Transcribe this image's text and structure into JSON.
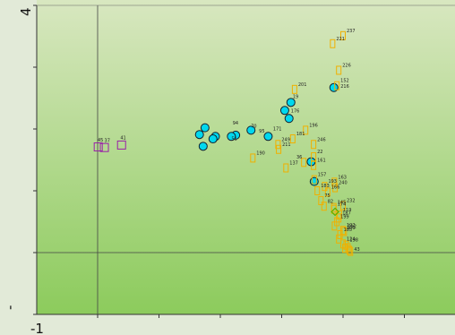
{
  "chart_data": {
    "type": "scatter",
    "title": "",
    "xlabel": "",
    "ylabel": "",
    "x_tick_labels": [
      "-1"
    ],
    "y_tick_labels": [
      "4",
      "-"
    ],
    "xlim": [
      -1,
      4.5
    ],
    "ylim": [
      -1,
      4
    ],
    "reference_lines": {
      "x": 0,
      "y": 0
    },
    "grid": false,
    "colors": {
      "background_top": "#d8e7c0",
      "background_bottom": "#8ccb5c",
      "cyan": "#00d8ee",
      "orange": "#f0b000",
      "purple": "#9a20a8",
      "green": "#58b000"
    },
    "series": [
      {
        "marker": "circle",
        "color": "#00d8ee",
        "points": [
          {
            "label": "",
            "x": 3.85,
            "y": 2.67
          },
          {
            "label": "",
            "x": 3.15,
            "y": 2.43
          },
          {
            "label": "",
            "x": 3.05,
            "y": 2.3
          },
          {
            "label": "",
            "x": 3.12,
            "y": 2.17
          },
          {
            "label": "",
            "x": 2.78,
            "y": 1.88
          },
          {
            "label": "",
            "x": 2.5,
            "y": 1.98
          },
          {
            "label": "",
            "x": 2.25,
            "y": 1.9
          },
          {
            "label": "",
            "x": 2.18,
            "y": 1.88
          },
          {
            "label": "",
            "x": 1.92,
            "y": 1.88
          },
          {
            "label": "",
            "x": 1.75,
            "y": 2.02
          },
          {
            "label": "",
            "x": 1.66,
            "y": 1.91
          },
          {
            "label": "",
            "x": 1.72,
            "y": 1.72
          },
          {
            "label": "",
            "x": 1.88,
            "y": 1.84
          },
          {
            "label": "",
            "x": 3.48,
            "y": 1.47
          },
          {
            "label": "",
            "x": 3.53,
            "y": 1.15
          }
        ]
      },
      {
        "marker": "square",
        "color": "#f0b000",
        "points": [
          {
            "label": "237",
            "x": 4.0,
            "y": 3.51
          },
          {
            "label": "221",
            "x": 3.83,
            "y": 3.38
          },
          {
            "label": "226",
            "x": 3.93,
            "y": 2.95
          },
          {
            "label": "152",
            "x": 3.9,
            "y": 2.7
          },
          {
            "label": "201",
            "x": 3.21,
            "y": 2.64
          },
          {
            "label": "196",
            "x": 3.39,
            "y": 1.98
          },
          {
            "label": "181",
            "x": 3.18,
            "y": 1.84
          },
          {
            "label": "246",
            "x": 3.52,
            "y": 1.75
          },
          {
            "label": "249",
            "x": 2.94,
            "y": 1.75
          },
          {
            "label": "211",
            "x": 2.95,
            "y": 1.67
          },
          {
            "label": "190",
            "x": 2.53,
            "y": 1.53
          },
          {
            "label": "22",
            "x": 3.52,
            "y": 1.55
          },
          {
            "label": "",
            "x": 3.36,
            "y": 1.46
          },
          {
            "label": "137",
            "x": 3.07,
            "y": 1.37
          },
          {
            "label": "161",
            "x": 3.52,
            "y": 1.41
          },
          {
            "label": "157",
            "x": 3.53,
            "y": 1.18
          },
          {
            "label": "193",
            "x": 3.7,
            "y": 1.07
          },
          {
            "label": "163",
            "x": 3.86,
            "y": 1.14
          },
          {
            "label": "240",
            "x": 3.87,
            "y": 1.05
          },
          {
            "label": "183",
            "x": 3.58,
            "y": 1.0
          },
          {
            "label": "166",
            "x": 3.75,
            "y": 0.98
          },
          {
            "label": "75",
            "x": 3.64,
            "y": 0.84
          },
          {
            "label": "82",
            "x": 3.69,
            "y": 0.75
          },
          {
            "label": "232",
            "x": 4.0,
            "y": 0.76
          },
          {
            "label": "145",
            "x": 3.85,
            "y": 0.73
          },
          {
            "label": "174",
            "x": 3.85,
            "y": 0.7
          },
          {
            "label": "119",
            "x": 3.94,
            "y": 0.61
          },
          {
            "label": "187",
            "x": 3.93,
            "y": 0.56
          },
          {
            "label": "199",
            "x": 3.9,
            "y": 0.5
          },
          {
            "label": "",
            "x": 3.86,
            "y": 0.43
          },
          {
            "label": "192",
            "x": 4.0,
            "y": 0.36
          },
          {
            "label": "112",
            "x": 4.02,
            "y": 0.34
          },
          {
            "label": "185",
            "x": 3.95,
            "y": 0.29
          },
          {
            "label": "",
            "x": 3.93,
            "y": 0.22
          },
          {
            "label": "124",
            "x": 4.0,
            "y": 0.14
          },
          {
            "label": "198",
            "x": 4.05,
            "y": 0.12
          },
          {
            "label": "",
            "x": 4.08,
            "y": 0.08
          },
          {
            "label": "",
            "x": 4.1,
            "y": 0.04
          },
          {
            "label": "",
            "x": 4.03,
            "y": 0.07
          },
          {
            "label": "",
            "x": 4.12,
            "y": 0.02
          }
        ]
      },
      {
        "marker": "square",
        "color": "#9a20a8",
        "points": [
          {
            "label": "",
            "x": 0.01,
            "y": 1.71
          },
          {
            "label": "",
            "x": 0.11,
            "y": 1.7
          },
          {
            "label": "",
            "x": 0.39,
            "y": 1.74
          }
        ]
      },
      {
        "marker": "diamond",
        "color": "#58b000",
        "points": [
          {
            "label": "",
            "x": 3.87,
            "y": 0.66
          }
        ]
      }
    ],
    "point_labels": [
      {
        "text": "94",
        "x": 2.2,
        "y": 2.07
      },
      {
        "text": "70",
        "x": 2.5,
        "y": 2.02
      },
      {
        "text": "19",
        "x": 3.18,
        "y": 2.5
      },
      {
        "text": "176",
        "x": 3.15,
        "y": 2.27
      },
      {
        "text": "171",
        "x": 2.86,
        "y": 1.98
      },
      {
        "text": "95",
        "x": 2.63,
        "y": 1.94
      },
      {
        "text": "51",
        "x": 2.18,
        "y": 1.82
      },
      {
        "text": "216",
        "x": 3.96,
        "y": 2.67
      },
      {
        "text": "45",
        "x": 0.0,
        "y": 1.8
      },
      {
        "text": "37",
        "x": 0.11,
        "y": 1.79
      },
      {
        "text": "41",
        "x": 0.37,
        "y": 1.83
      },
      {
        "text": "36",
        "x": 3.24,
        "y": 1.52
      },
      {
        "text": "199",
        "x": 4.06,
        "y": 0.38
      },
      {
        "text": "43",
        "x": 4.18,
        "y": 0.03
      }
    ]
  }
}
